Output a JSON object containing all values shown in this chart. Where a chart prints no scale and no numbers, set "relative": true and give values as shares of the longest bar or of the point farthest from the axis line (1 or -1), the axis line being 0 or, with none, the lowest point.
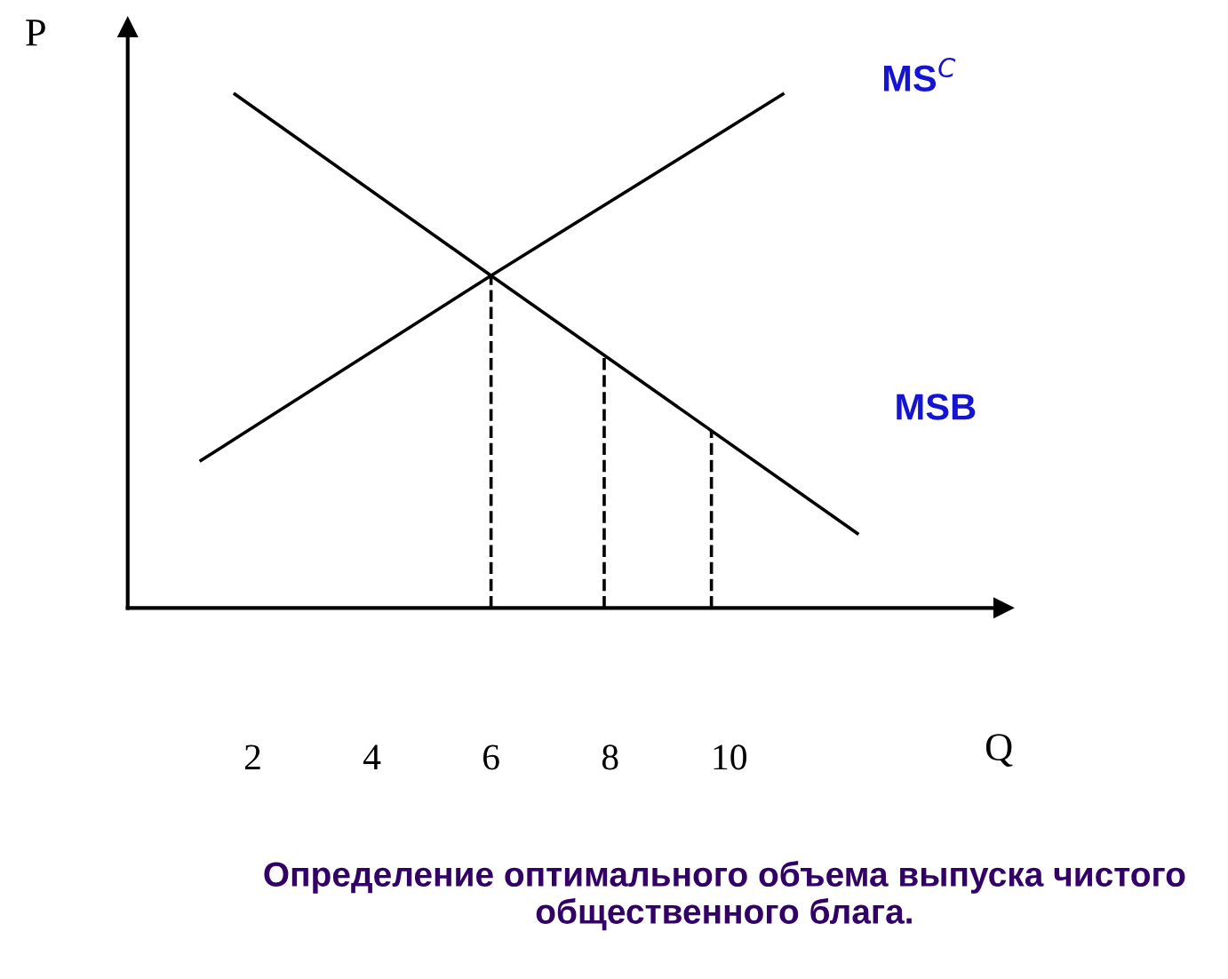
{
  "chart_data": {
    "type": "line",
    "relative": true,
    "xlabel": "Q",
    "ylabel": "P",
    "xlim": [
      -0.1,
      14.6
    ],
    "xticks": [
      2,
      4,
      6,
      8,
      10
    ],
    "grid": false,
    "legend": false,
    "marker": "none",
    "series": [
      {
        "name": "MS$^{C}$",
        "color": "#000000",
        "line_style": "solid",
        "x": [
          1.13,
          6,
          10.9
        ],
        "values": [
          0.287,
          0.647,
          1
        ]
      },
      {
        "name": "MSB",
        "color": "#000000",
        "line_style": "solid",
        "x": [
          1.7,
          6,
          12.15
        ],
        "values": [
          1,
          0.647,
          0.145
        ]
      },
      {
        "color": "#000000",
        "line_style": "dashed",
        "x": [
          6,
          6
        ],
        "values": [
          0,
          0.647
        ]
      },
      {
        "color": "#000000",
        "line_style": "dashed",
        "x": [
          7.9,
          7.9
        ],
        "values": [
          0,
          0.492
        ]
      },
      {
        "color": "#000000",
        "line_style": "dashed",
        "x": [
          9.7,
          9.7
        ],
        "values": [
          0,
          0.346
        ]
      }
    ],
    "annotations": [
      "Определение оптимального объема выпуска чистого общественного блага."
    ]
  }
}
